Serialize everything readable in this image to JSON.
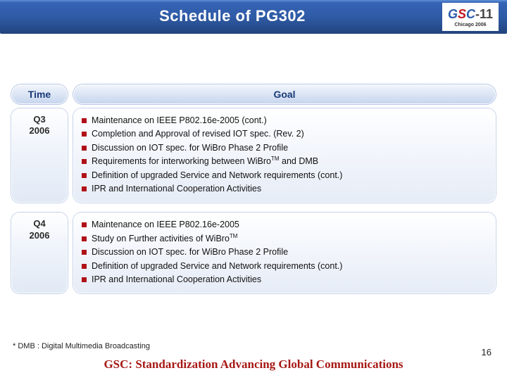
{
  "title": "Schedule of PG302",
  "logo": {
    "text_g": "G",
    "text_s": "S",
    "text_c": "C",
    "dash": "-",
    "num": "11",
    "sub": "Chicago 2006"
  },
  "headers": {
    "time": "Time",
    "goal": "Goal"
  },
  "rows": [
    {
      "quarter": "Q3",
      "year": "2006",
      "items": [
        "Maintenance on IEEE P802.16e-2005 (cont.)",
        "Completion and Approval of revised IOT spec. (Rev. 2)",
        "Discussion on IOT spec. for WiBro Phase 2 Profile",
        "Requirements for interworking between WiBro™ and DMB",
        "Definition of upgraded Service and Network requirements (cont.)",
        "IPR and International Cooperation Activities"
      ]
    },
    {
      "quarter": "Q4",
      "year": "2006",
      "items": [
        "Maintenance on IEEE P802.16e-2005",
        "Study on Further activities of WiBro™",
        "Discussion on IOT spec. for WiBro Phase 2 Profile",
        "Definition of upgraded Service and Network requirements (cont.)",
        "IPR and International Cooperation Activities"
      ]
    }
  ],
  "footnote": "* DMB : Digital Multimedia Broadcasting",
  "footer": "GSC: Standardization Advancing Global Communications",
  "page_number": "16",
  "colors": {
    "title_bg_top": "#5f91d8",
    "title_bg_bottom": "#22447d",
    "accent_red": "#b01018",
    "footer_red": "#a61814",
    "pill_border": "#b5c6e3"
  }
}
